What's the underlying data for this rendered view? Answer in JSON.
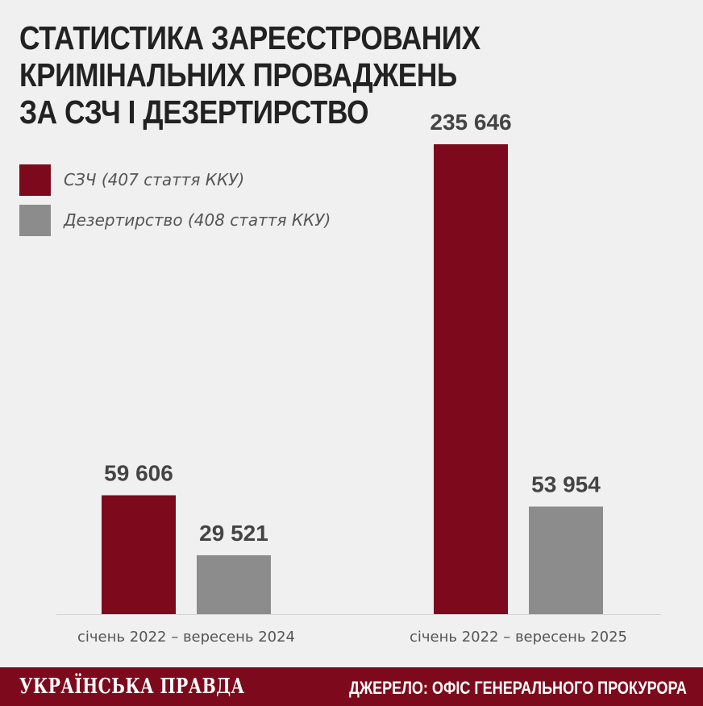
{
  "header": {
    "title_lines": [
      "СТАТИСТИКА ЗАРЕЄСТРОВАНИХ",
      "КРИМІНАЛЬНИХ ПРОВАДЖЕНЬ",
      "ЗА СЗЧ І ДЕЗЕРТИРСТВО"
    ]
  },
  "colors": {
    "szch": "#7d0a1c",
    "desertion": "#8c8c8c",
    "value_label": "#444444",
    "category_label": "#555555",
    "baseline": "#d4d4d4"
  },
  "chart_data": {
    "type": "bar",
    "categories": [
      "січень 2022 – вересень 2024",
      "січень 2022 – вересень 2025"
    ],
    "series": [
      {
        "name": "СЗЧ (407 стаття ККУ)",
        "values": [
          59606,
          235646
        ],
        "labels": [
          "59 606",
          "235 646"
        ]
      },
      {
        "name": "Дезертирство (408 стаття ККУ)",
        "values": [
          29521,
          53954
        ],
        "labels": [
          "29 521",
          "53 954"
        ]
      }
    ],
    "title": "Статистика зареєстрованих кримінальних проваджень за СЗЧ і дезертирство",
    "xlabel": "",
    "ylabel": "",
    "ylim": [
      0,
      235646
    ],
    "grid": false,
    "legend": "top-left"
  },
  "footer": {
    "brand": "УКРАЇНСЬКА ПРАВДА",
    "source": "ДЖЕРЕЛО: ОФІС ГЕНЕРАЛЬНОГО ПРОКУРОРА"
  }
}
